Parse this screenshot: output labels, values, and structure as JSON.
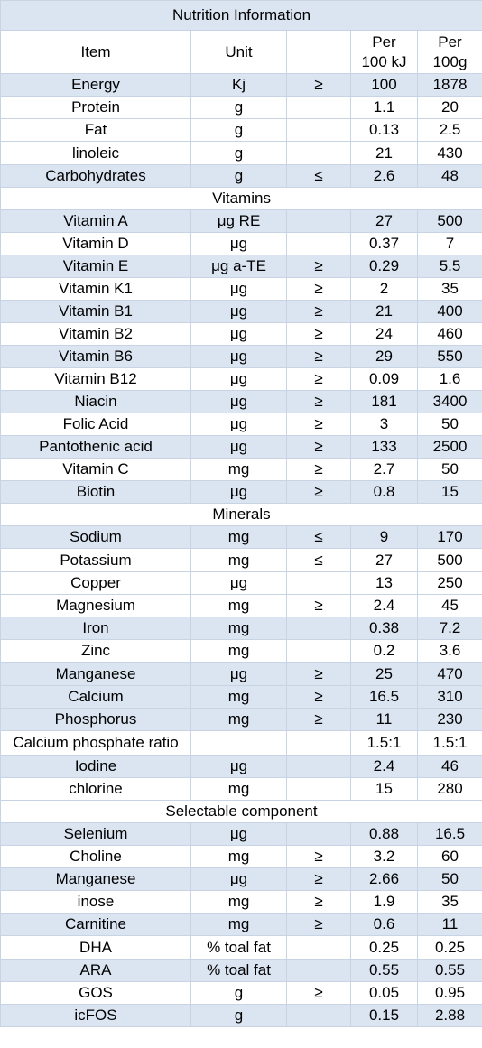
{
  "title": "Nutrition Information",
  "headers": {
    "item": "Item",
    "unit": "Unit",
    "symbol": "",
    "per100kj_line1": "Per",
    "per100kj_line2": "100 kJ",
    "per100g_line1": "Per",
    "per100g_line2": "100g"
  },
  "rows": [
    {
      "type": "data",
      "shade": "shaded",
      "item": "Energy",
      "unit": "Kj",
      "symbol": "≥",
      "per100kj": "100",
      "per100g": "1878"
    },
    {
      "type": "data",
      "shade": "plain",
      "item": "Protein",
      "unit": "g",
      "symbol": "",
      "per100kj": "1.1",
      "per100g": "20"
    },
    {
      "type": "data",
      "shade": "plain",
      "item": "Fat",
      "unit": "g",
      "symbol": "",
      "per100kj": "0.13",
      "per100g": "2.5"
    },
    {
      "type": "data",
      "shade": "plain",
      "item": "linoleic",
      "unit": "g",
      "symbol": "",
      "per100kj": "21",
      "per100g": "430"
    },
    {
      "type": "data",
      "shade": "shaded",
      "item": "Carbohydrates",
      "unit": "g",
      "symbol": "≤",
      "per100kj": "2.6",
      "per100g": "48"
    },
    {
      "type": "section",
      "label": "Vitamins"
    },
    {
      "type": "data",
      "shade": "shaded",
      "item": "Vitamin A",
      "unit": "μg  RE",
      "symbol": "",
      "per100kj": "27",
      "per100g": "500"
    },
    {
      "type": "data",
      "shade": "plain",
      "item": "Vitamin D",
      "unit": "μg",
      "symbol": "",
      "per100kj": "0.37",
      "per100g": "7"
    },
    {
      "type": "data",
      "shade": "shaded",
      "item": "Vitamin E",
      "unit": "μg a-TE",
      "symbol": "≥",
      "per100kj": "0.29",
      "per100g": "5.5"
    },
    {
      "type": "data",
      "shade": "plain",
      "item": "Vitamin K1",
      "unit": "μg",
      "symbol": "≥",
      "per100kj": "2",
      "per100g": "35"
    },
    {
      "type": "data",
      "shade": "shaded",
      "item": "Vitamin B1",
      "unit": "μg",
      "symbol": "≥",
      "per100kj": "21",
      "per100g": "400"
    },
    {
      "type": "data",
      "shade": "plain",
      "item": "Vitamin B2",
      "unit": "μg",
      "symbol": "≥",
      "per100kj": "24",
      "per100g": "460"
    },
    {
      "type": "data",
      "shade": "shaded",
      "item": "Vitamin B6",
      "unit": "μg",
      "symbol": "≥",
      "per100kj": "29",
      "per100g": "550"
    },
    {
      "type": "data",
      "shade": "plain",
      "item": "Vitamin B12",
      "unit": "μg",
      "symbol": "≥",
      "per100kj": "0.09",
      "per100g": "1.6"
    },
    {
      "type": "data",
      "shade": "shaded",
      "item": "Niacin",
      "unit": "μg",
      "symbol": "≥",
      "per100kj": "181",
      "per100g": "3400"
    },
    {
      "type": "data",
      "shade": "plain",
      "item": "Folic Acid",
      "unit": "μg",
      "symbol": "≥",
      "per100kj": "3",
      "per100g": "50"
    },
    {
      "type": "data",
      "shade": "shaded",
      "item": "Pantothenic acid",
      "unit": "μg",
      "symbol": "≥",
      "per100kj": "133",
      "per100g": "2500"
    },
    {
      "type": "data",
      "shade": "plain",
      "item": "Vitamin C",
      "unit": "mg",
      "symbol": "≥",
      "per100kj": "2.7",
      "per100g": "50"
    },
    {
      "type": "data",
      "shade": "shaded",
      "item": "Biotin",
      "unit": "μg",
      "symbol": "≥",
      "per100kj": "0.8",
      "per100g": "15"
    },
    {
      "type": "section",
      "label": "Minerals"
    },
    {
      "type": "data",
      "shade": "shaded",
      "item": "Sodium",
      "unit": "mg",
      "symbol": "≤",
      "per100kj": "9",
      "per100g": "170"
    },
    {
      "type": "data",
      "shade": "plain",
      "item": "Potassium",
      "unit": "mg",
      "symbol": "≤",
      "per100kj": "27",
      "per100g": "500"
    },
    {
      "type": "data",
      "shade": "plain",
      "item": "Copper",
      "unit": "μg",
      "symbol": "",
      "per100kj": "13",
      "per100g": "250"
    },
    {
      "type": "data",
      "shade": "plain",
      "item": "Magnesium",
      "unit": "mg",
      "symbol": "≥",
      "per100kj": "2.4",
      "per100g": "45"
    },
    {
      "type": "data",
      "shade": "shaded",
      "item": "Iron",
      "unit": "mg",
      "symbol": "",
      "per100kj": "0.38",
      "per100g": "7.2"
    },
    {
      "type": "data",
      "shade": "plain",
      "item": "Zinc",
      "unit": "mg",
      "symbol": "",
      "per100kj": "0.2",
      "per100g": "3.6"
    },
    {
      "type": "data",
      "shade": "shaded",
      "item": "Manganese",
      "unit": "μg",
      "symbol": "≥",
      "per100kj": "25",
      "per100g": "470"
    },
    {
      "type": "data",
      "shade": "shaded",
      "item": "Calcium",
      "unit": "mg",
      "symbol": "≥",
      "per100kj": "16.5",
      "per100g": "310"
    },
    {
      "type": "data",
      "shade": "shaded",
      "item": "Phosphorus",
      "unit": "mg",
      "symbol": "≥",
      "per100kj": "11",
      "per100g": "230"
    },
    {
      "type": "data",
      "shade": "plain",
      "item": "Calcium phosphate ratio",
      "unit": "",
      "symbol": "",
      "per100kj": "1.5:1",
      "per100g": "1.5:1"
    },
    {
      "type": "data",
      "shade": "shaded",
      "item": "Iodine",
      "unit": "μg",
      "symbol": "",
      "per100kj": "2.4",
      "per100g": "46"
    },
    {
      "type": "data",
      "shade": "plain",
      "item": "chlorine",
      "unit": "mg",
      "symbol": "",
      "per100kj": "15",
      "per100g": "280"
    },
    {
      "type": "section",
      "label": "Selectable component"
    },
    {
      "type": "data",
      "shade": "shaded",
      "item": "Selenium",
      "unit": "μg",
      "symbol": "",
      "per100kj": "0.88",
      "per100g": "16.5"
    },
    {
      "type": "data",
      "shade": "plain",
      "item": "Choline",
      "unit": "mg",
      "symbol": "≥",
      "per100kj": "3.2",
      "per100g": "60"
    },
    {
      "type": "data",
      "shade": "shaded",
      "item": "Manganese",
      "unit": "μg",
      "symbol": "≥",
      "per100kj": "2.66",
      "per100g": "50"
    },
    {
      "type": "data",
      "shade": "plain",
      "item": "inose",
      "unit": "mg",
      "symbol": "≥",
      "per100kj": "1.9",
      "per100g": "35"
    },
    {
      "type": "data",
      "shade": "shaded",
      "item": "Carnitine",
      "unit": "mg",
      "symbol": "≥",
      "per100kj": "0.6",
      "per100g": "11"
    },
    {
      "type": "data",
      "shade": "plain",
      "item": "DHA",
      "unit": "% toal fat",
      "symbol": "",
      "per100kj": "0.25",
      "per100g": "0.25"
    },
    {
      "type": "data",
      "shade": "shaded",
      "item": "ARA",
      "unit": "% toal fat",
      "symbol": "",
      "per100kj": "0.55",
      "per100g": "0.55"
    },
    {
      "type": "data",
      "shade": "plain",
      "item": "GOS",
      "unit": "g",
      "symbol": "≥",
      "per100kj": "0.05",
      "per100g": "0.95"
    },
    {
      "type": "data",
      "shade": "shaded",
      "item": "icFOS",
      "unit": "g",
      "symbol": "",
      "per100kj": "0.15",
      "per100g": "2.88"
    }
  ]
}
